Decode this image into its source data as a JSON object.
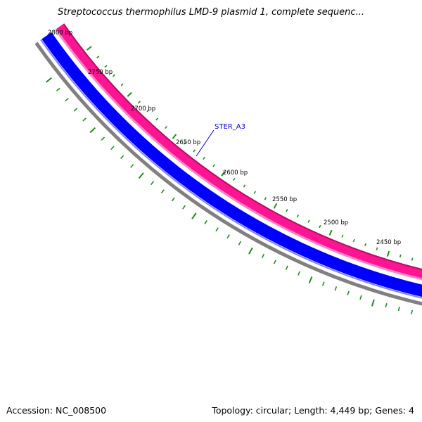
{
  "title": "Streptococcus thermophilus LMD-9 plasmid 1, complete sequenc...",
  "accession": {
    "label": "Accession:",
    "value": "NC_008500"
  },
  "topology": "Topology: circular; Length: 4,449 bp; Genes: 4",
  "gene_label": "STER_A3",
  "ruler_labels": [
    "2800 bp",
    "2750 bp",
    "2700 bp",
    "2650 bp",
    "2600 bp",
    "2550 bp",
    "2500 bp",
    "2450 bp"
  ],
  "colors": {
    "outer_ring": "#ff1493",
    "outer_ring_edge": "#b0105f",
    "inner_ring": "#0000ff",
    "backbone": "#808080",
    "ticks": "#228b22",
    "gene_label": "#0000cc"
  }
}
